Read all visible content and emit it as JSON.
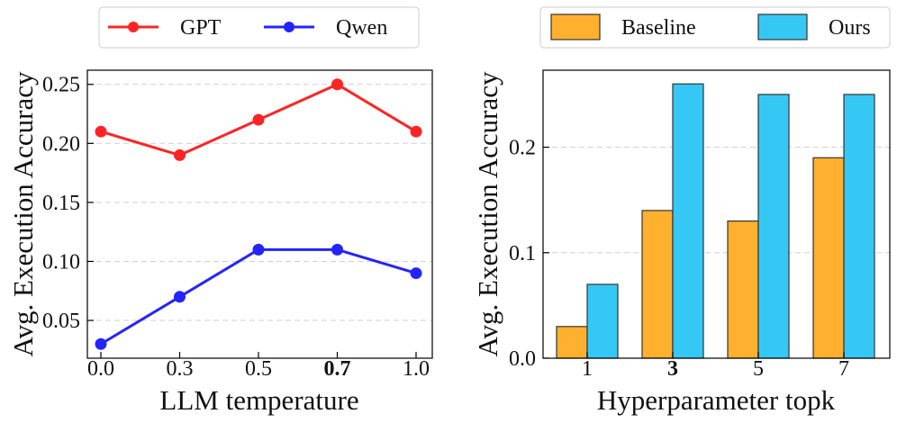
{
  "chart_data": [
    {
      "type": "line",
      "xlabel": "LLM temperature",
      "ylabel": "Avg. Execution Accuracy",
      "x_tick_labels": [
        "0.0",
        "0.3",
        "0.5",
        "0.7",
        "1.0"
      ],
      "bold_x_tick": "0.7",
      "y_ticks": [
        0.05,
        0.1,
        0.15,
        0.2,
        0.25
      ],
      "y_tick_labels": [
        "0.05",
        "0.10",
        "0.15",
        "0.20",
        "0.25"
      ],
      "ylim": [
        0.018,
        0.262
      ],
      "grid": "horizontal dashed",
      "legend_position": "top",
      "series": [
        {
          "name": "GPT",
          "color": "#ff2424",
          "values": [
            0.21,
            0.19,
            0.22,
            0.25,
            0.21
          ]
        },
        {
          "name": "Qwen",
          "color": "#2424ff",
          "values": [
            0.03,
            0.07,
            0.11,
            0.11,
            0.09
          ]
        }
      ]
    },
    {
      "type": "bar",
      "xlabel": "Hyperparameter topk",
      "ylabel": "Avg. Execution Accuracy",
      "categories": [
        "1",
        "3",
        "5",
        "7"
      ],
      "bold_category": "3",
      "y_ticks": [
        0.0,
        0.1,
        0.2
      ],
      "y_tick_labels": [
        "0.0",
        "0.1",
        "0.2"
      ],
      "ylim": [
        0.0,
        0.273
      ],
      "grid": "horizontal dashed",
      "legend_position": "top",
      "series": [
        {
          "name": "Baseline",
          "color": "#ffb02e",
          "values": [
            0.03,
            0.14,
            0.13,
            0.19
          ]
        },
        {
          "name": "Ours",
          "color": "#36c8f5",
          "values": [
            0.07,
            0.26,
            0.25,
            0.25
          ]
        }
      ]
    }
  ]
}
